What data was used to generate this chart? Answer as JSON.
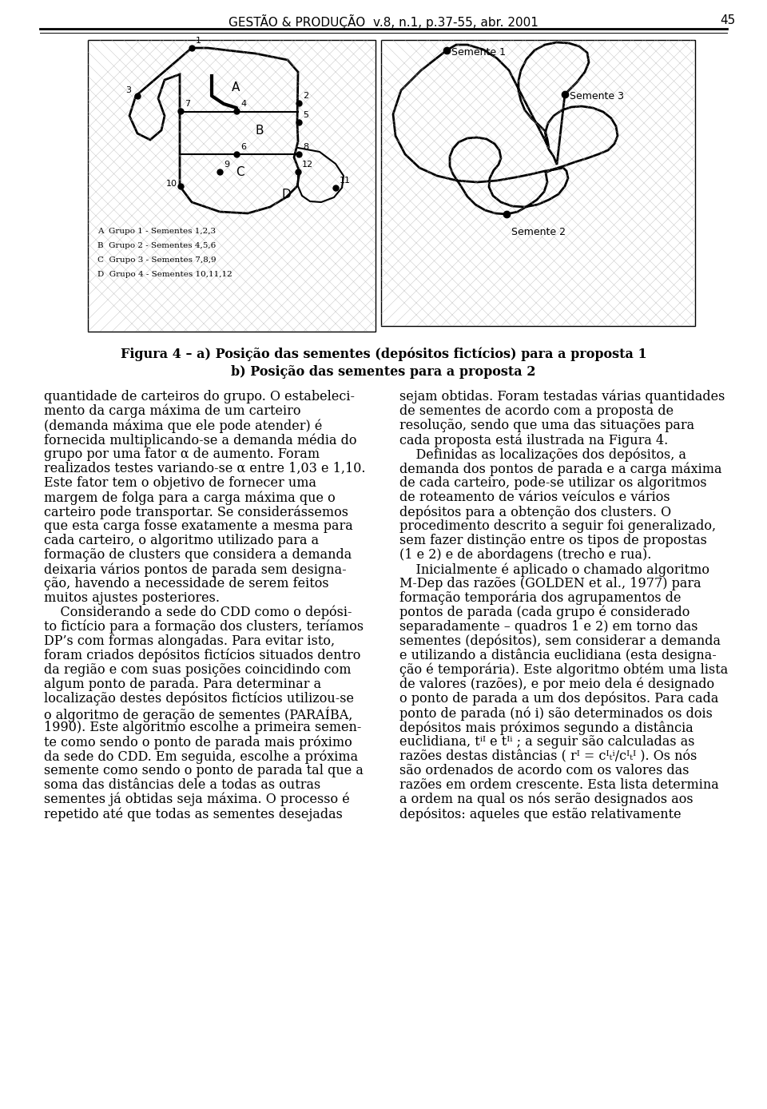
{
  "header_text": "GESTÃO & PRODUÇÃO  v.8, n.1, p.37-55, abr. 2001",
  "page_number": "45",
  "figure_caption_line1": "Figura 4 – a) Posição das sementes (depósitos fictícios) para a proposta 1",
  "figure_caption_line2": "b) Posição das sementes para a proposta 2",
  "left_map_legend": [
    "A  Grupo 1 - Sementes 1,2,3",
    "B  Grupo 2 - Sementes 4,5,6",
    "C  Grupo 3 - Sementes 7,8,9",
    "D  Grupo 4 - Sementes 10,11,12"
  ],
  "left_col_lines": [
    "quantidade de carteiros do grupo. O estabeleci-",
    "mento da carga máxima de um carteiro",
    "(demanda máxima que ele pode atender) é",
    "fornecida multiplicando-se a demanda média do",
    "grupo por uma fator α de aumento. Foram",
    "realizados testes variando-se α entre 1,03 e 1,10.",
    "Este fator tem o objetivo de fornecer uma",
    "margem de folga para a carga máxima que o",
    "carteiro pode transportar. Se considerássemos",
    "que esta carga fosse exatamente a mesma para",
    "cada carteiro, o algoritmo utilizado para a",
    "formação de clusters que considera a demanda",
    "deixaria vários pontos de parada sem designa-",
    "ção, havendo a necessidade de serem feitos",
    "muitos ajustes posteriores.",
    "    Considerando a sede do CDD como o depósi-",
    "to fictício para a formação dos clusters, teríamos",
    "DP’s com formas alongadas. Para evitar isto,",
    "foram criados depósitos fictícios situados dentro",
    "da região e com suas posições coincidindo com",
    "algum ponto de parada. Para determinar a",
    "localização destes depósitos fictícios utilizou-se",
    "o algoritmo de geração de sementes (PARAÍBA,",
    "1990). Este algoritmo escolhe a primeira semen-",
    "te como sendo o ponto de parada mais próximo",
    "da sede do CDD. Em seguida, escolhe a próxima",
    "semente como sendo o ponto de parada tal que a",
    "soma das distâncias dele a todas as outras",
    "sementes já obtidas seja máxima. O processo é",
    "repetido até que todas as sementes desejadas"
  ],
  "right_col_lines": [
    "sejam obtidas. Foram testadas várias quantidades",
    "de sementes de acordo com a proposta de",
    "resolução, sendo que uma das situações para",
    "cada proposta está ilustrada na Figura 4.",
    "    Definidas as localizações dos depósitos, a",
    "demanda dos pontos de parada e a carga máxima",
    "de cada carteiro, pode-se utilizar os algoritmos",
    "de roteamento de vários veículos e vários",
    "depósitos para a obtenção dos clusters. O",
    "procedimento descrito a seguir foi generalizado,",
    "sem fazer distinção entre os tipos de propostas",
    "(1 e 2) e de abordagens (trecho e rua).",
    "    Inicialmente é aplicado o chamado algoritmo",
    "M-Dep das razões (GOLDEN et al., 1977) para",
    "formação temporária dos agrupamentos de",
    "pontos de parada (cada grupo é considerado",
    "separadamente – quadros 1 e 2) em torno das",
    "sementes (depósitos), sem considerar a demanda",
    "e utilizando a distância euclidiana (esta designa-",
    "ção é temporária). Este algoritmo obtém uma lista",
    "de valores (razões), e por meio dela é designado",
    "o ponto de parada a um dos depósitos. Para cada",
    "ponto de parada (nó i) são determinados os dois",
    "depósitos mais próximos segundo a distância",
    "euclidiana, tⁱᴵ e tᴵⁱ ; a seguir são calculadas as",
    "razões destas distâncias ( rᴵ = cᴵₜⁱ/cᴵₜᴵ ). Os nós",
    "são ordenados de acordo com os valores das",
    "razões em ordem crescente. Esta lista determina",
    "a ordem na qual os nós serão designados aos",
    "depósitos: aqueles que estão relativamente"
  ],
  "bg_color": "#ffffff",
  "text_color": "#000000",
  "body_fontsize": 11.5,
  "caption_fontsize": 11.5,
  "header_fontsize": 11.0,
  "legend_fontsize": 9.0
}
